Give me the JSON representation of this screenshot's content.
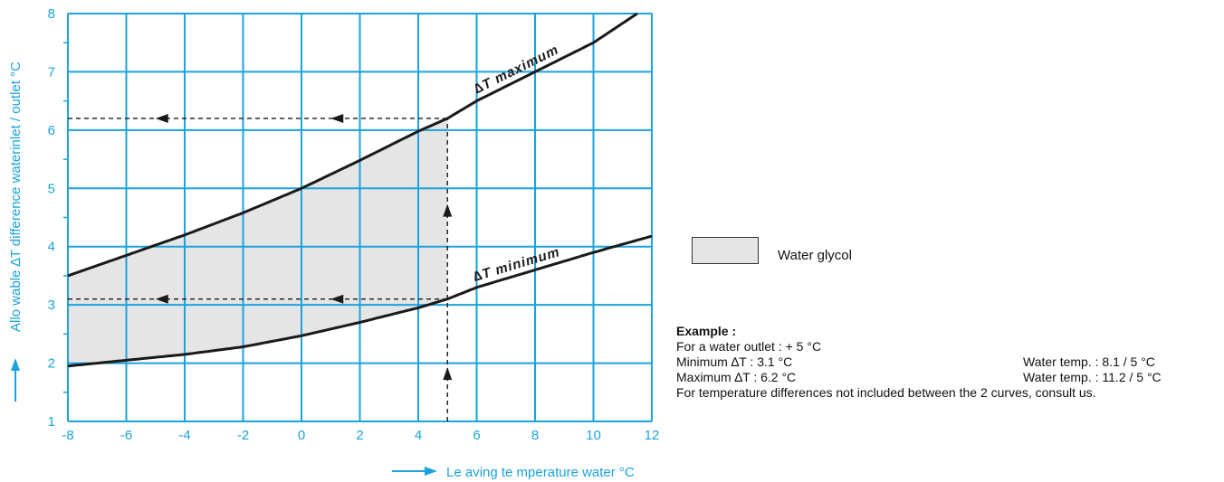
{
  "chart_data": {
    "type": "line",
    "xlabel": "Le aving te mperature water °C",
    "ylabel": "Allo wable ∆T difference waterinlet / outlet °C",
    "xlim": [
      -8,
      12
    ],
    "ylim": [
      1,
      8
    ],
    "x_ticks": [
      "-8",
      "-6",
      "-4",
      "-2",
      "0",
      "2",
      "4",
      "6",
      "8",
      "10",
      "12"
    ],
    "y_ticks": [
      "1",
      "2",
      "3",
      "4",
      "5",
      "6",
      "7",
      "8"
    ],
    "grid": true,
    "series": [
      {
        "name": "∆T maximum",
        "x": [
          -8,
          -6,
          -4,
          -2,
          0,
          2,
          4,
          5,
          6,
          8,
          10,
          11.5
        ],
        "y": [
          3.5,
          3.85,
          4.2,
          4.58,
          5.0,
          5.48,
          5.98,
          6.2,
          6.5,
          7.0,
          7.5,
          8.0
        ]
      },
      {
        "name": "∆T minimum",
        "x": [
          -8,
          -6,
          -4,
          -2,
          0,
          2,
          4,
          5,
          6,
          8,
          10,
          12
        ],
        "y": [
          1.95,
          2.05,
          2.15,
          2.28,
          2.47,
          2.7,
          2.95,
          3.1,
          3.3,
          3.6,
          3.9,
          4.18
        ]
      }
    ],
    "shaded_region": {
      "x_from": -8,
      "x_to": 5,
      "between": [
        "∆T minimum",
        "∆T maximum"
      ]
    },
    "example_guides": {
      "x": 5,
      "y_min": 3.1,
      "y_max": 6.2
    },
    "colors": {
      "grid": "#1aa3dc",
      "curve": "#1a1a1a",
      "fill": "#e5e5e5",
      "axis_text": "#1aa3dc"
    }
  },
  "legend": {
    "label": "Water glycol"
  },
  "example": {
    "title": "Example :",
    "line1": "For a water outlet : + 5 °C",
    "min_label": "Minimum ∆T : 3.1 °C",
    "min_water": "Water temp. : 8.1 / 5  °C",
    "max_label": "Maximum ∆T : 6.2 °C",
    "max_water": "Water temp. : 11.2 / 5 °C",
    "footer": "For temperature differences not included between the 2 curves, consult us."
  }
}
